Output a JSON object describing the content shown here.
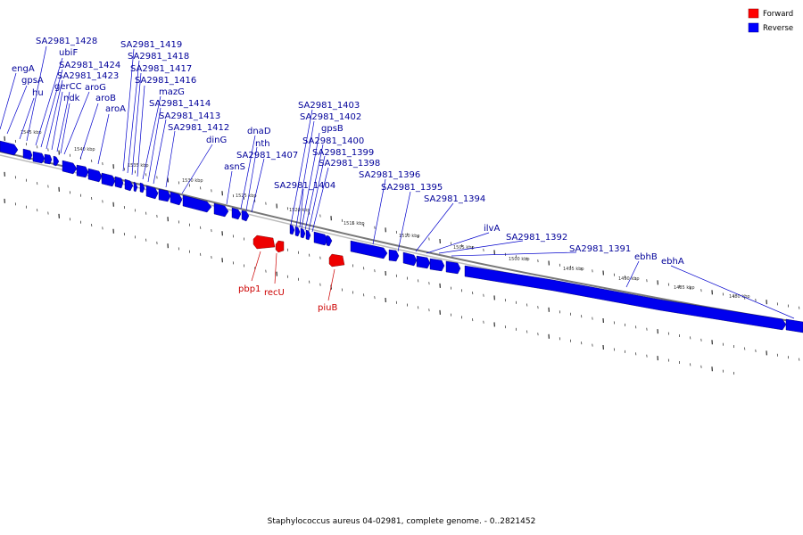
{
  "caption": "Staphylococcus aureus 04-02981, complete genome. - 0..2821452",
  "legend": [
    {
      "label": "Forward",
      "color": "#ff0000"
    },
    {
      "label": "Reverse",
      "color": "#0000ff"
    }
  ],
  "colors": {
    "forward": "#ff0000",
    "reverse": "#0000ff",
    "forward_label": "#cc0000",
    "reverse_label": "#000099",
    "backbone": "#888888"
  },
  "kbp_ticks": [
    "1545 kbp",
    "1540 kbp",
    "1535 kbp",
    "1530 kbp",
    "1525 kbp",
    "1520 kbp",
    "1515 kbp",
    "1510 kbp",
    "1505 kbp",
    "1500 kbp",
    "1495 kbp",
    "1490 kbp",
    "1485 kbp",
    "1480 kbp"
  ],
  "reverse_genes": [
    "SA2981_1428",
    "ubiF",
    "engA",
    "SA2981_1424",
    "gpsA",
    "SA2981_1423",
    "hu",
    "gerCC",
    "aroG",
    "ndk",
    "aroB",
    "aroA",
    "SA2981_1419",
    "SA2981_1418",
    "SA2981_1417",
    "SA2981_1416",
    "mazG",
    "SA2981_1414",
    "SA2981_1413",
    "SA2981_1412",
    "dinG",
    "dnaD",
    "nth",
    "SA2981_1407",
    "asnS",
    "SA2981_1403",
    "SA2981_1402",
    "gpsB",
    "SA2981_1400",
    "SA2981_1399",
    "SA2981_1398",
    "SA2981_1404",
    "SA2981_1396",
    "SA2981_1395",
    "SA2981_1394",
    "ilvA",
    "SA2981_1392",
    "SA2981_1391",
    "ebhB",
    "ebhA"
  ],
  "forward_genes": [
    "pbp1",
    "recU",
    "piuB"
  ]
}
